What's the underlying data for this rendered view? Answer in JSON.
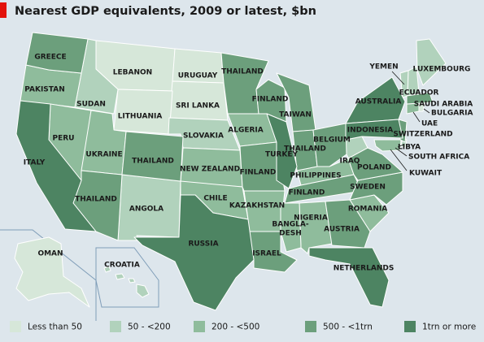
{
  "title": "Nearest GDP equivalents, 2009 or latest, $bn",
  "legend": [
    {
      "label": "Less than 50",
      "color": "#d6e7d9",
      "regions": [
        "LEBANON",
        "URUGUAY",
        "SRI LANKA",
        "LITHUANIA",
        "OMAN",
        "BULGARIA"
      ]
    },
    {
      "label": "50 - <200",
      "color": "#b1d2bc",
      "regions": [
        "SUDAN",
        "ANGOLA",
        "ECUADOR",
        "LUXEMBOURG",
        "YEMEN",
        "SLOVAKIA",
        "IRAQ",
        "LIBYA",
        "KUWAIT",
        "CROATIA"
      ]
    },
    {
      "label": "200 - <500",
      "color": "#8fbc9c",
      "regions": [
        "PAKISTAN",
        "PERU",
        "UKRAINE",
        "NEW ZEALAND",
        "CHILE",
        "KAZAKHSTAN",
        "ALGERIA",
        "PHILIPPINES",
        "NIGERIA",
        "BANGLA-\nDESH",
        "ROMANIA",
        "SOUTH AFRICA",
        "UAE"
      ]
    },
    {
      "label": "500 - <1trn",
      "color": "#6c9f7c",
      "regions": [
        "GREECE",
        "THAILAND",
        "THAILAND",
        "THAILAND",
        "FINLAND",
        "TAIWAN",
        "FINLAND",
        "THAILAND",
        "BELGIUM",
        "FINLAND",
        "SWEDEN",
        "POLAND",
        "AUSTRIA",
        "ISRAEL",
        "SWITZERLAND",
        "SAUDI ARABIA"
      ]
    },
    {
      "label": "1trn or more",
      "color": "#4d8462",
      "regions": [
        "ITALY",
        "RUSSIA",
        "TURKEY",
        "AUSTRALIA",
        "INDONESIA",
        "NETHERLANDS"
      ]
    }
  ]
}
